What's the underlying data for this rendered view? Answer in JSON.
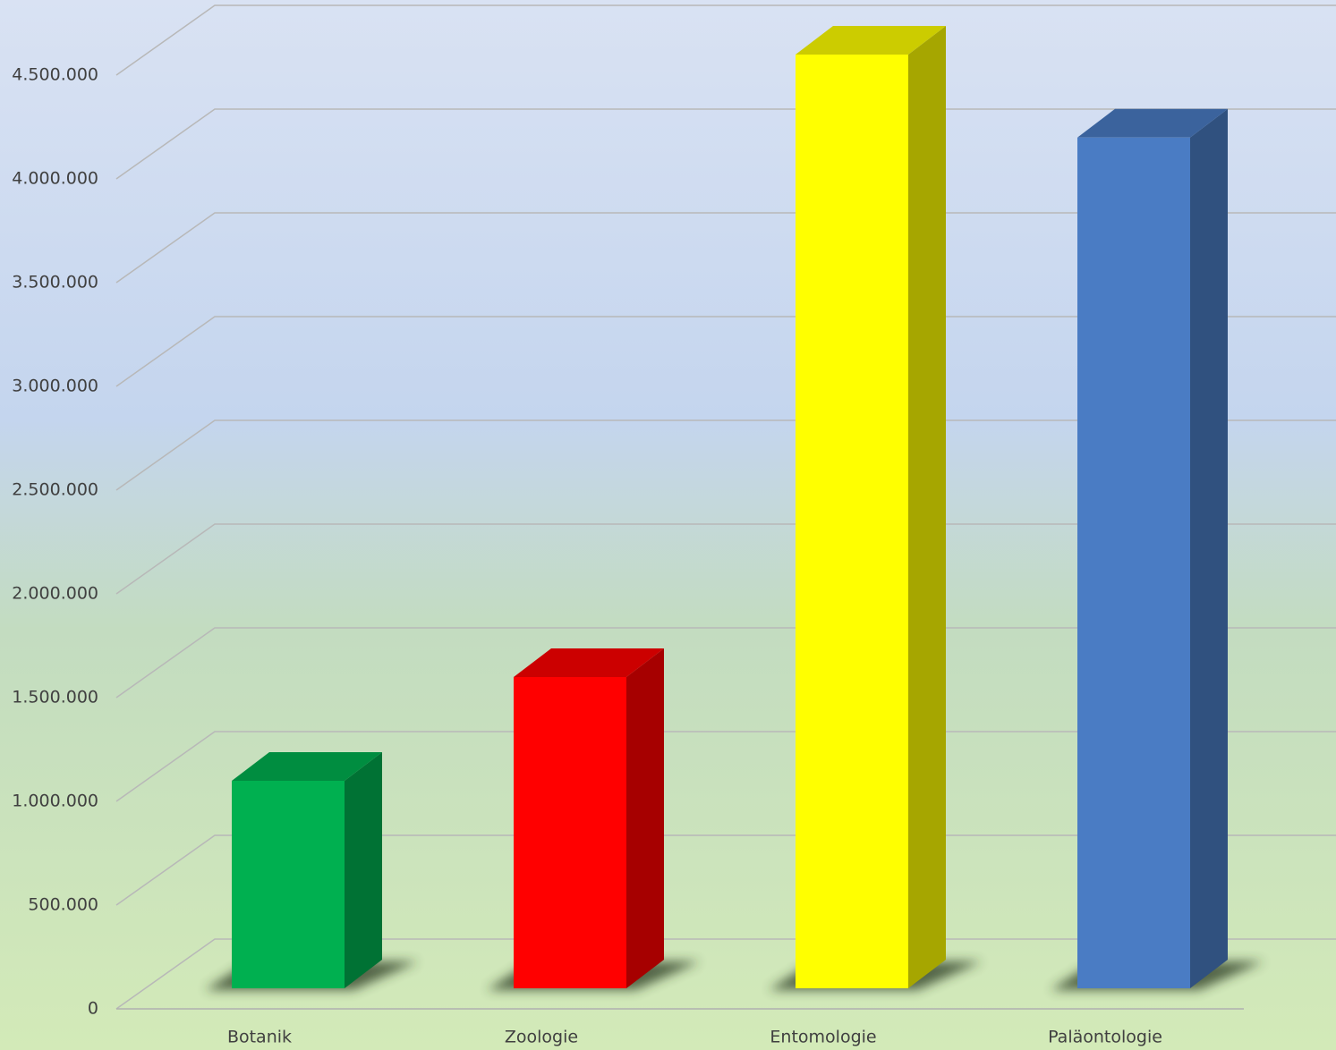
{
  "chart_data": {
    "type": "bar3d",
    "categories": [
      "Botanik",
      "Zoologie",
      "Entomologie",
      "Paläontologie"
    ],
    "values": [
      1000000,
      1500000,
      4500000,
      4100000
    ],
    "colors": [
      "#00b050",
      "#ff0000",
      "#ffff00",
      "#4a7cc4"
    ],
    "ylim": [
      0,
      4500000
    ],
    "yticks": [
      0,
      {
        "value": 500000,
        "label": "500.000"
      },
      {
        "value": 1000000,
        "label": "1.000.000"
      },
      {
        "value": 1500000,
        "label": "1.500.000"
      },
      {
        "value": 2000000,
        "label": "2.000.000"
      },
      {
        "value": 2500000,
        "label": "2.500.000"
      },
      {
        "value": 3000000,
        "label": "3.000.000"
      },
      {
        "value": 3500000,
        "label": "3.500.000"
      },
      {
        "value": 4000000,
        "label": "4.000.000"
      },
      {
        "value": 4500000,
        "label": "4.500.000"
      }
    ],
    "grid": true
  }
}
